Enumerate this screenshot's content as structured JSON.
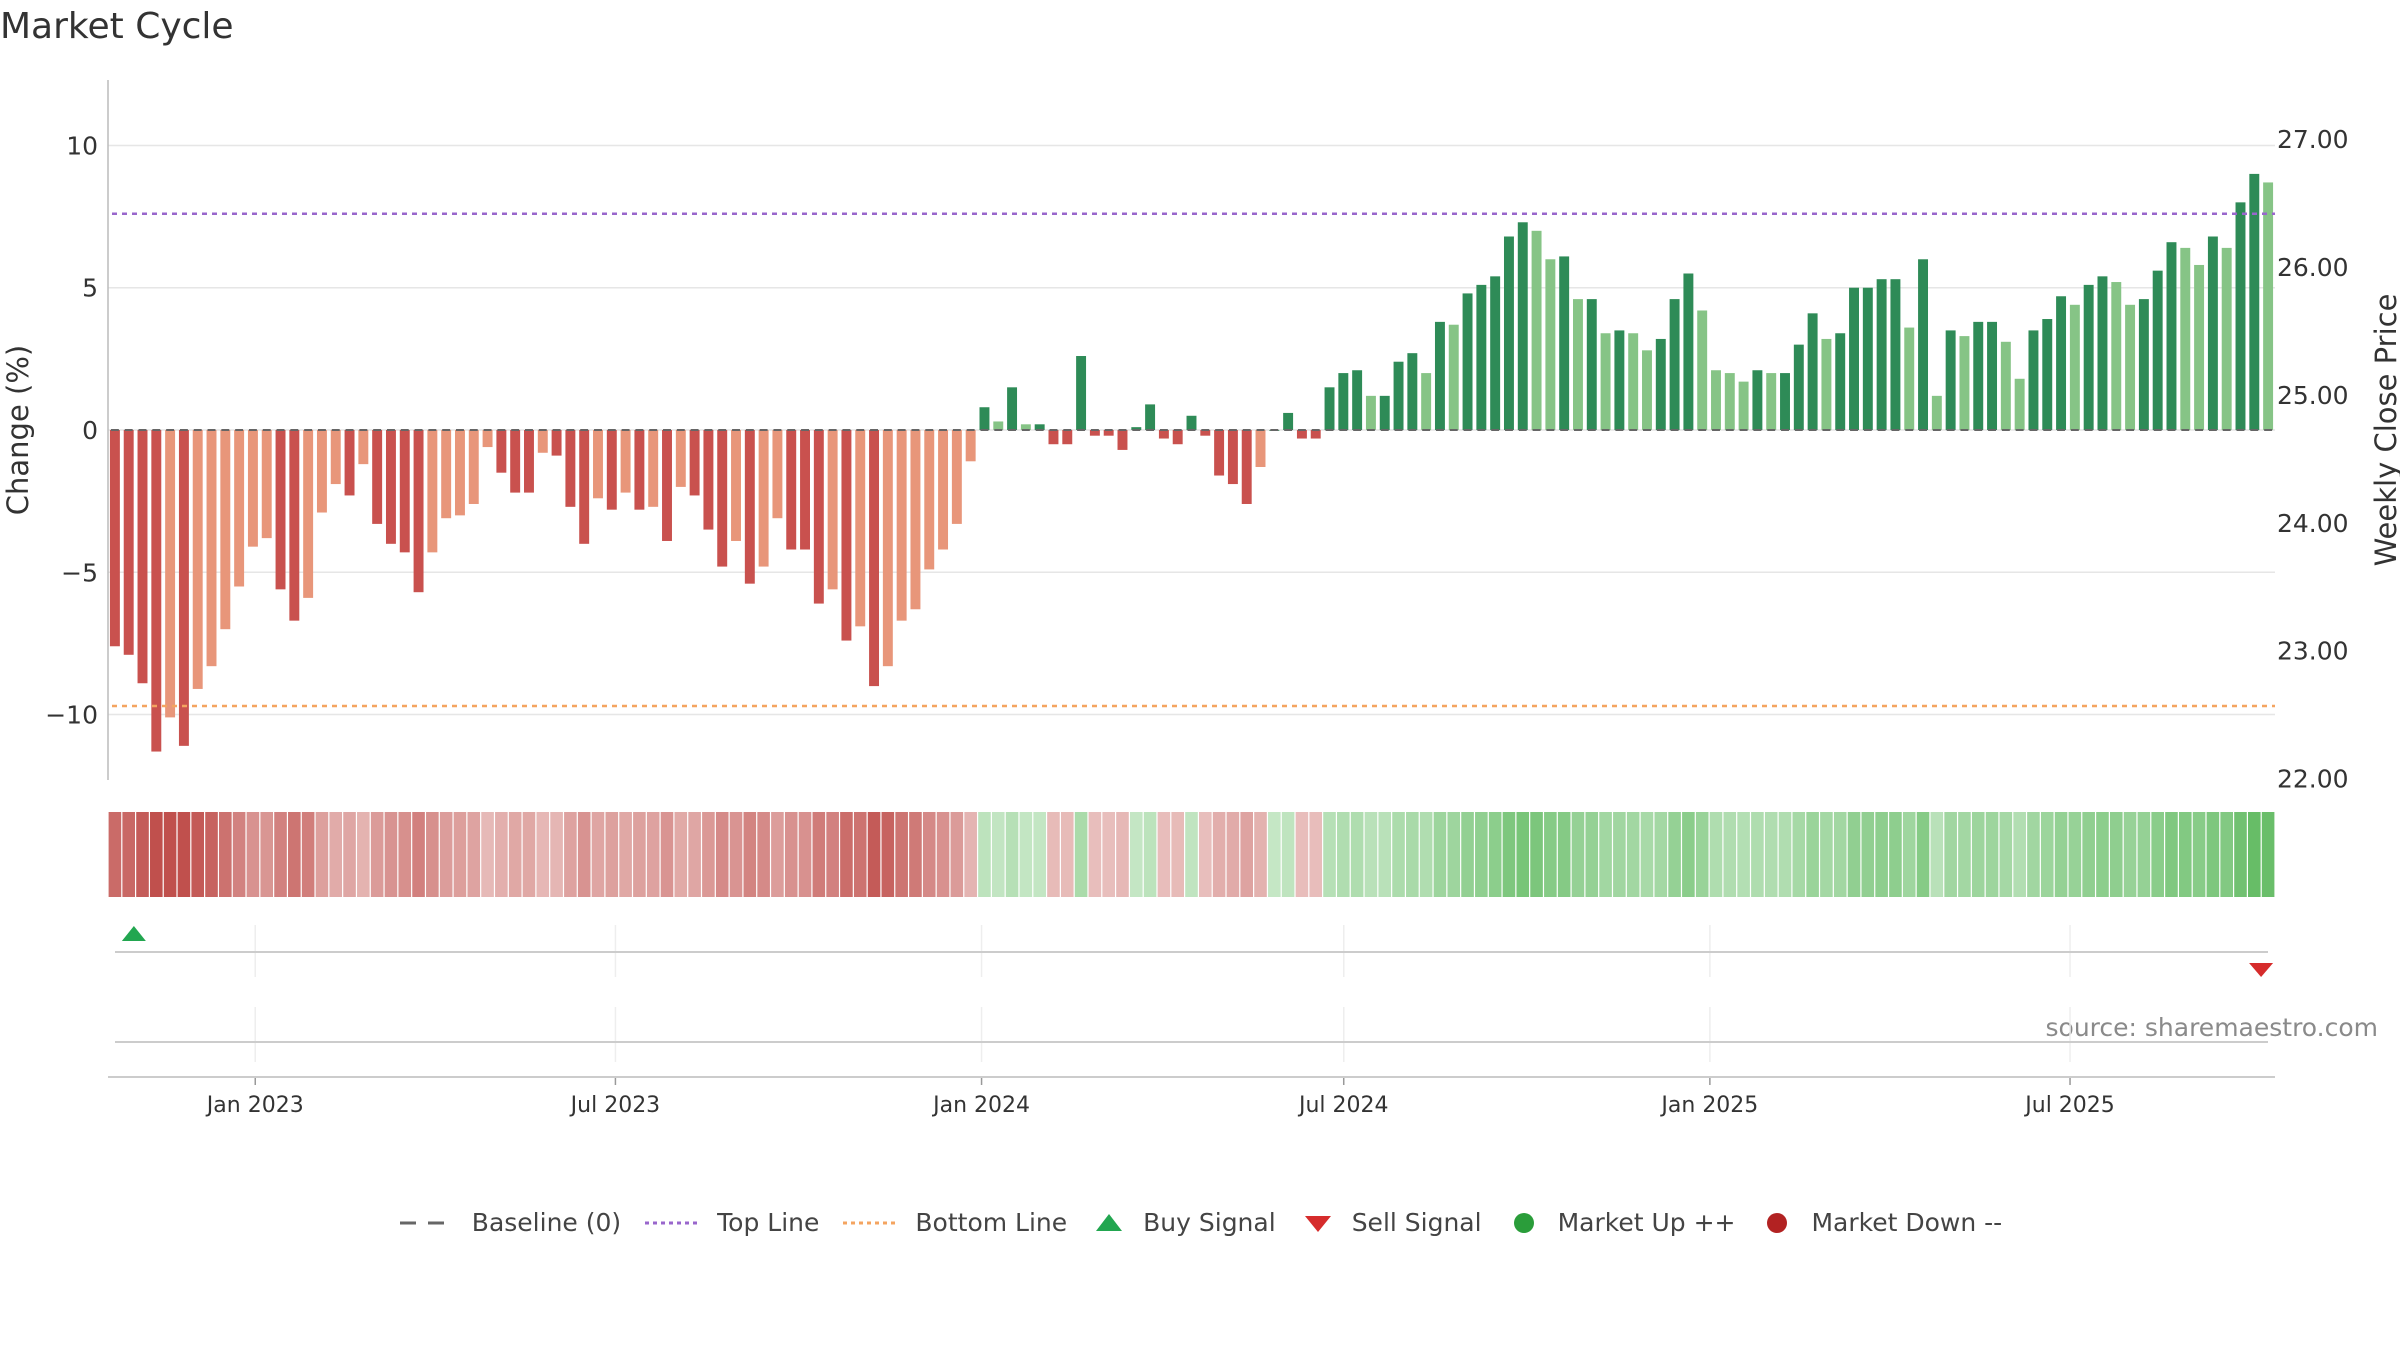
{
  "title": "Market Cycle",
  "source": "source: sharemaestro.com",
  "colors": {
    "down_dark": "#c9514e",
    "down_light": "#e8967a",
    "up_dark": "#2e8b57",
    "up_light": "#86c486",
    "top_line": "#9966cc",
    "bottom_line": "#f4a460",
    "baseline": "#666666",
    "buy": "#22a650",
    "sell": "#d62c2c",
    "market_up": "#2a9d3a",
    "market_down": "#b22222"
  },
  "legend": [
    {
      "label": "Baseline (0)",
      "icon": "dash-line-icon"
    },
    {
      "label": "Top Line",
      "icon": "dotted-purple-line-icon"
    },
    {
      "label": "Bottom Line",
      "icon": "dotted-orange-line-icon"
    },
    {
      "label": "Buy Signal",
      "icon": "triangle-up-icon"
    },
    {
      "label": "Sell Signal",
      "icon": "triangle-down-icon"
    },
    {
      "label": "Market Up ++",
      "icon": "green-dot-icon"
    },
    {
      "label": "Market Down --",
      "icon": "red-dot-icon"
    }
  ],
  "chart_data": {
    "type": "bar",
    "title": "Market Cycle",
    "ylabel": "Change (%)",
    "y2label": "Weekly Close Price",
    "ylim": [
      -12.3,
      12.3
    ],
    "y2lim": [
      21.99,
      27.46
    ],
    "yticks": [
      10,
      5,
      0,
      -5,
      -10
    ],
    "ytick_labels": [
      "10",
      "5",
      "0",
      "−5",
      "−10"
    ],
    "y2ticks": [
      27.0,
      26.0,
      25.0,
      24.0,
      23.0,
      22.0
    ],
    "y2tick_labels": [
      "27.00",
      "26.00",
      "25.00",
      "24.00",
      "23.00",
      "22.00"
    ],
    "top_line": 7.6,
    "bottom_line": -9.7,
    "baseline": 0,
    "x_start": "2022-10-19",
    "x_end": "2025-10-12",
    "xticks": [
      "2023-01-01",
      "2023-07-01",
      "2024-01-01",
      "2024-07-01",
      "2025-01-01",
      "2025-07-01"
    ],
    "xtick_labels": [
      "Jan 2023",
      "Jul 2023",
      "Jan 2024",
      "Jul 2024",
      "Jan 2025",
      "Jul 2025"
    ],
    "values": [
      -7.6,
      -7.9,
      -8.9,
      -11.3,
      -10.1,
      -11.1,
      -9.1,
      -8.3,
      -7.0,
      -5.5,
      -4.1,
      -3.8,
      -5.6,
      -6.7,
      -5.9,
      -2.9,
      -1.9,
      -2.3,
      -1.2,
      -3.3,
      -4.0,
      -4.3,
      -5.7,
      -4.3,
      -3.1,
      -3.0,
      -2.6,
      -0.6,
      -1.5,
      -2.2,
      -2.2,
      -0.8,
      -0.9,
      -2.7,
      -4.0,
      -2.4,
      -2.8,
      -2.2,
      -2.8,
      -2.7,
      -3.9,
      -2.0,
      -2.3,
      -3.5,
      -4.8,
      -3.9,
      -5.4,
      -4.8,
      -3.1,
      -4.2,
      -4.2,
      -6.1,
      -5.6,
      -7.4,
      -6.9,
      -9.0,
      -8.3,
      -6.7,
      -6.3,
      -4.9,
      -4.2,
      -3.3,
      -1.1,
      0.8,
      0.3,
      1.5,
      0.2,
      0.2,
      -0.5,
      -0.5,
      2.6,
      -0.2,
      -0.2,
      -0.7,
      0.1,
      0.9,
      -0.3,
      -0.5,
      0.5,
      -0.2,
      -1.6,
      -1.9,
      -2.6,
      -1.3,
      0.0,
      0.6,
      -0.3,
      -0.3,
      1.5,
      2.0,
      2.1,
      1.2,
      1.2,
      2.4,
      2.7,
      2.0,
      3.8,
      3.7,
      4.8,
      5.1,
      5.4,
      6.8,
      7.3,
      7.0,
      6.0,
      6.1,
      4.6,
      4.6,
      3.4,
      3.5,
      3.4,
      2.8,
      3.2,
      4.6,
      5.5,
      4.2,
      2.1,
      2.0,
      1.7,
      2.1,
      2.0,
      2.0,
      3.0,
      4.1,
      3.2,
      3.4,
      5.0,
      5.0,
      5.3,
      5.3,
      3.6,
      6.0,
      1.2,
      3.5,
      3.3,
      3.8,
      3.8,
      3.1,
      1.8,
      3.5,
      3.9,
      4.7,
      4.4,
      5.1,
      5.4,
      5.2,
      4.4,
      4.6,
      5.6,
      6.6,
      6.4,
      5.8,
      6.8,
      6.4,
      8.0,
      9.0,
      8.7
    ],
    "buy_signals": [
      {
        "date": "2022-11-01",
        "value": "buy"
      }
    ],
    "sell_signals": [
      {
        "date": "2025-10-05",
        "value": "sell"
      }
    ],
    "legend_position": "bottom-center"
  }
}
